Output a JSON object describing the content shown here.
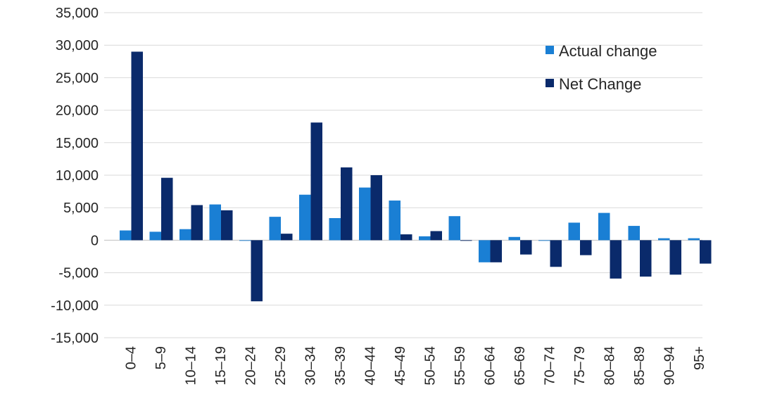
{
  "chart_data": {
    "type": "bar",
    "title": "",
    "xlabel": "",
    "ylabel": "",
    "ylim": [
      -15000,
      35000
    ],
    "ytick_step": 5000,
    "yticks": [
      "35,000",
      "30,000",
      "25,000",
      "20,000",
      "15,000",
      "10,000",
      "5,000",
      "0",
      "-5,000",
      "-10,000",
      "-15,000"
    ],
    "grid": true,
    "legend_position": "top-right",
    "categories": [
      "0–4",
      "5–9",
      "10–14",
      "15–19",
      "20–24",
      "25–29",
      "30–34",
      "35–39",
      "40–44",
      "45–49",
      "50–54",
      "55–59",
      "60–64",
      "65–69",
      "70–74",
      "75–79",
      "80–84",
      "85–89",
      "90–94",
      "95+"
    ],
    "series": [
      {
        "name": "Actual change",
        "color": "#1a7fd4",
        "values": [
          1500,
          1300,
          1700,
          5500,
          -100,
          3600,
          7000,
          3400,
          8100,
          6100,
          600,
          3700,
          -3400,
          500,
          -100,
          2700,
          4200,
          2200,
          300,
          300
        ]
      },
      {
        "name": "Net Change",
        "color": "#0a2a6b",
        "values": [
          29000,
          9600,
          5400,
          4600,
          -9400,
          1000,
          18100,
          11200,
          10000,
          900,
          1400,
          -100,
          -3400,
          -2200,
          -4100,
          -2300,
          -5900,
          -5600,
          -5300,
          -3600
        ]
      }
    ]
  }
}
